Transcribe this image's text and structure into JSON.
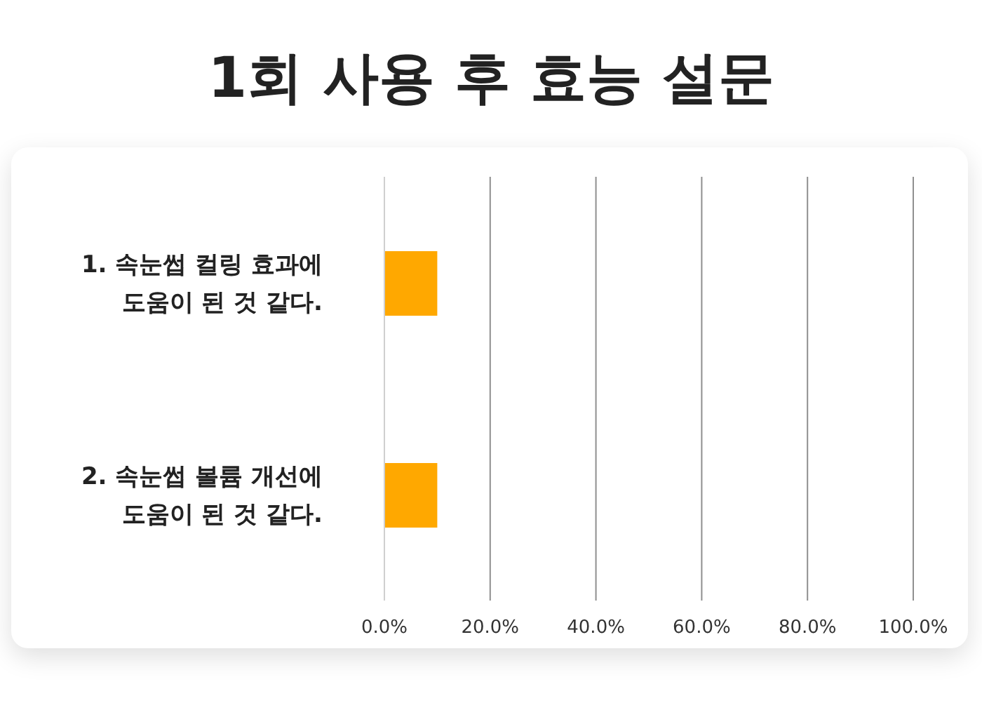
{
  "chart_data": {
    "type": "bar",
    "title": "1회 사용 후 효능 설문",
    "orientation": "horizontal",
    "categories": [
      "1. 속눈썹 컬링 효과에 도움이 된 것 같다.",
      "2. 속눈썹 볼륨 개선에 도움이 된 것 같다."
    ],
    "values": [
      10,
      10
    ],
    "color": "#ffa800",
    "xlim": [
      0,
      100
    ],
    "xticks": [
      {
        "value": 0,
        "label": "0.0%"
      },
      {
        "value": 20,
        "label": "20.0%"
      },
      {
        "value": 40,
        "label": "40.0%"
      },
      {
        "value": 60,
        "label": "60.0%"
      },
      {
        "value": 80,
        "label": "80.0%"
      },
      {
        "value": 100,
        "label": "100.0%"
      }
    ],
    "grid": "x"
  }
}
